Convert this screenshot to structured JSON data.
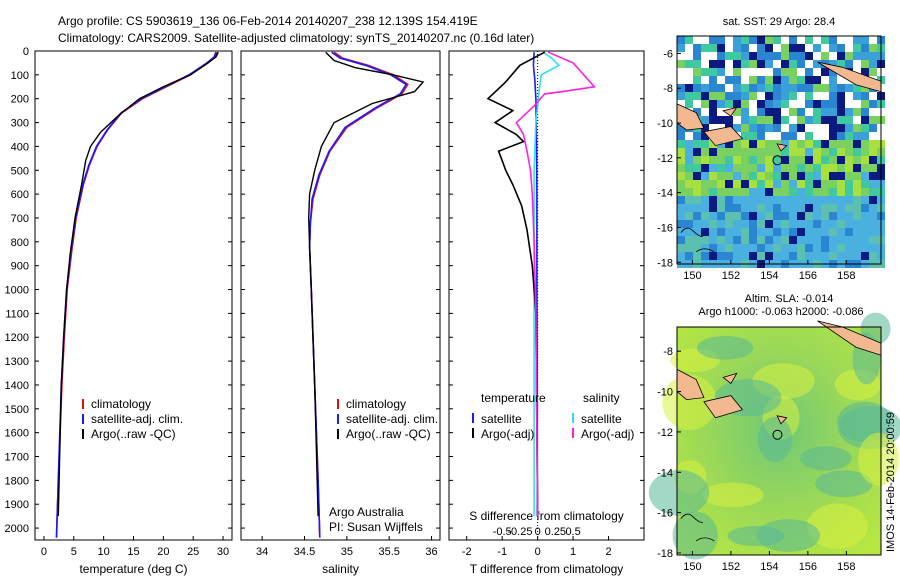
{
  "header": {
    "line1": "Argo profile: CS 5903619_136 06-Feb-2014 20140207_238 12.139S 154.419E",
    "line2": "Climatology: CARS2009. Satellite-adjusted climatology: synTS_20140207.nc (0.16d later)"
  },
  "colors": {
    "climatology": "#e01010",
    "satellite": "#1a1aff",
    "argo": "#000000",
    "salinity_satellite": "#30e0f0",
    "salinity_argo": "#ff20e0"
  },
  "depth_ticks": [
    "0",
    "100",
    "200",
    "300",
    "400",
    "500",
    "600",
    "700",
    "800",
    "900",
    "1000",
    "1100",
    "1200",
    "1300",
    "1400",
    "1500",
    "1600",
    "1700",
    "1800",
    "1900",
    "2000"
  ],
  "chart_data": [
    {
      "type": "line",
      "xlabel": "temperature (deg C)",
      "xticks": [
        "0",
        "5",
        "10",
        "15",
        "20",
        "25",
        "30"
      ],
      "xlim": [
        -1.5,
        31.5
      ],
      "ylim": [
        2050,
        0
      ],
      "legend": [
        "climatology",
        "satellite-adj. clim.",
        "Argo(..raw -QC)"
      ],
      "series": [
        {
          "name": "climatology",
          "x": [
            29.0,
            28.7,
            27.5,
            24.5,
            20.5,
            16.5,
            13.0,
            10.7,
            8.9,
            7.6,
            6.6,
            5.4,
            4.6,
            3.9,
            3.4,
            3.0,
            2.4,
            2.1
          ],
          "y": [
            5,
            25,
            50,
            100,
            150,
            200,
            260,
            330,
            400,
            480,
            560,
            700,
            850,
            1000,
            1200,
            1400,
            1800,
            2040
          ]
        },
        {
          "name": "satellite-adj. clim.",
          "x": [
            28.8,
            28.5,
            27.3,
            24.3,
            20.3,
            16.3,
            12.9,
            10.6,
            8.8,
            7.5,
            6.5,
            5.3,
            4.5,
            3.8,
            3.3,
            2.9,
            2.4,
            2.1
          ],
          "y": [
            5,
            25,
            50,
            100,
            150,
            200,
            260,
            330,
            400,
            480,
            560,
            700,
            850,
            1000,
            1200,
            1400,
            1800,
            2040
          ]
        },
        {
          "name": "Argo(..raw -QC)",
          "x": [
            29.2,
            28.8,
            27.2,
            24.5,
            20.0,
            16.0,
            12.5,
            9.5,
            7.8,
            7.0,
            6.3,
            5.2,
            4.4,
            3.8,
            3.3,
            2.9,
            2.4
          ],
          "y": [
            5,
            25,
            55,
            100,
            150,
            200,
            270,
            340,
            400,
            460,
            560,
            700,
            850,
            1000,
            1200,
            1400,
            1950
          ]
        }
      ],
      "extra_text": []
    },
    {
      "type": "line",
      "xlabel": "salinity",
      "xticks": [
        "34",
        "34.5",
        "35",
        "35.5",
        "36"
      ],
      "xlim": [
        33.75,
        36.1
      ],
      "ylim": [
        2050,
        0
      ],
      "legend": [
        "climatology",
        "satellite-adj. clim.",
        "Argo(..raw -QC)"
      ],
      "series": [
        {
          "name": "climatology",
          "x": [
            34.85,
            34.95,
            35.25,
            35.55,
            35.72,
            35.65,
            35.35,
            35.0,
            34.8,
            34.68,
            34.6,
            34.57,
            34.56,
            34.58,
            34.6,
            34.62,
            34.66,
            34.68
          ],
          "y": [
            5,
            30,
            60,
            100,
            140,
            180,
            240,
            320,
            420,
            520,
            620,
            720,
            820,
            1000,
            1200,
            1400,
            1800,
            2040
          ]
        },
        {
          "name": "satellite-adj. clim.",
          "x": [
            34.82,
            34.92,
            35.22,
            35.52,
            35.7,
            35.63,
            35.33,
            34.98,
            34.79,
            34.67,
            34.59,
            34.57,
            34.56,
            34.58,
            34.6,
            34.62,
            34.66,
            34.68
          ],
          "y": [
            5,
            30,
            60,
            100,
            140,
            180,
            240,
            320,
            420,
            520,
            620,
            720,
            820,
            1000,
            1200,
            1400,
            1800,
            2040
          ]
        },
        {
          "name": "Argo(..raw -QC)",
          "x": [
            34.75,
            34.85,
            35.1,
            35.55,
            35.9,
            35.8,
            35.3,
            34.85,
            34.7,
            34.62,
            34.56,
            34.55,
            34.56,
            34.58,
            34.6,
            34.62,
            34.66
          ],
          "y": [
            5,
            40,
            70,
            100,
            130,
            170,
            220,
            300,
            400,
            500,
            600,
            700,
            820,
            1000,
            1200,
            1400,
            1950
          ]
        }
      ],
      "extra_text": [
        "Argo Australia",
        "PI: Susan Wijffels"
      ]
    },
    {
      "type": "line",
      "xlabel": "T difference from climatology",
      "xlabel_top": "S difference from climatology",
      "xticks": [
        "-2",
        "-1",
        "0",
        "1",
        "2"
      ],
      "xticks_top": [
        "-0.5",
        "-0.25",
        "0",
        "0.25",
        "0.5"
      ],
      "xlim": [
        -2.5,
        3.0
      ],
      "ylim": [
        2050,
        0
      ],
      "legend_titles": [
        "temperature",
        "salinity"
      ],
      "legend": [
        "satellite",
        "Argo(-adj)",
        "satellite",
        "Argo(-adj)"
      ],
      "series": [
        {
          "name": "temperature satellite",
          "x": [
            -0.1,
            -0.12,
            -0.08,
            -0.05,
            -0.04,
            -0.03,
            -0.02,
            -0.02,
            -0.01,
            -0.01
          ],
          "y": [
            5,
            60,
            120,
            200,
            300,
            400,
            600,
            1000,
            1500,
            1950
          ]
        },
        {
          "name": "salinity satellite",
          "x": [
            0.15,
            0.4,
            0.6,
            0.1,
            0.05,
            -0.05,
            -0.1,
            -0.1,
            -0.1,
            -0.1
          ],
          "y": [
            5,
            30,
            60,
            100,
            160,
            300,
            500,
            900,
            1400,
            1950
          ]
        },
        {
          "name": "temperature Argo(-adj)",
          "x": [
            0.2,
            -0.5,
            -0.9,
            -1.4,
            -0.7,
            -1.2,
            -0.6,
            -0.4,
            -1.1,
            -1.0,
            -0.9,
            -0.7,
            -0.45,
            -0.3,
            -0.15,
            -0.05,
            0.0
          ],
          "y": [
            5,
            60,
            130,
            200,
            250,
            300,
            350,
            380,
            420,
            460,
            500,
            560,
            650,
            750,
            900,
            1100,
            1950
          ]
        },
        {
          "name": "salinity Argo(-adj)",
          "x": [
            0.3,
            1.0,
            1.6,
            0.7,
            0.2,
            -0.1,
            -0.6,
            -0.4,
            -0.3,
            -0.2,
            -0.15,
            -0.1,
            -0.05,
            0.0
          ],
          "y": [
            5,
            50,
            150,
            170,
            180,
            230,
            300,
            350,
            420,
            500,
            600,
            800,
            1100,
            1950
          ]
        }
      ],
      "extra_text": []
    }
  ],
  "maps": [
    {
      "title": "sat. SST: 29 Argo: 28.4",
      "subtitle": "",
      "xticks": [
        "150",
        "152",
        "154",
        "156",
        "158"
      ],
      "yticks": [
        "-6",
        "-8",
        "-10",
        "-12",
        "-14",
        "-16",
        "-18"
      ],
      "marker": "Argo position"
    },
    {
      "title": "Altim. SLA: -0.014",
      "subtitle": "Argo h1000: -0.063 h2000: -0.086",
      "xticks": [
        "150",
        "152",
        "154",
        "156",
        "158"
      ],
      "yticks": [
        "-8",
        "-10",
        "-12",
        "-14",
        "-16",
        "-18"
      ],
      "marker": "Argo position"
    }
  ],
  "footer": {
    "stamp": "IMOS 14-Feb-2014 20:00:59"
  }
}
